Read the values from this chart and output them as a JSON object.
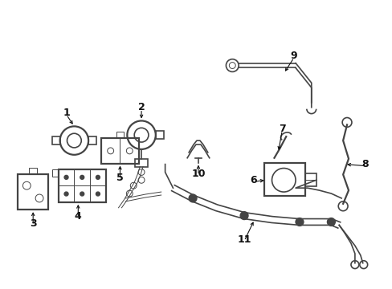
{
  "bg_color": "#ffffff",
  "line_color": "#444444",
  "label_color": "#111111",
  "lw": 1.2,
  "lw_thin": 0.7,
  "lw_thick": 1.6
}
